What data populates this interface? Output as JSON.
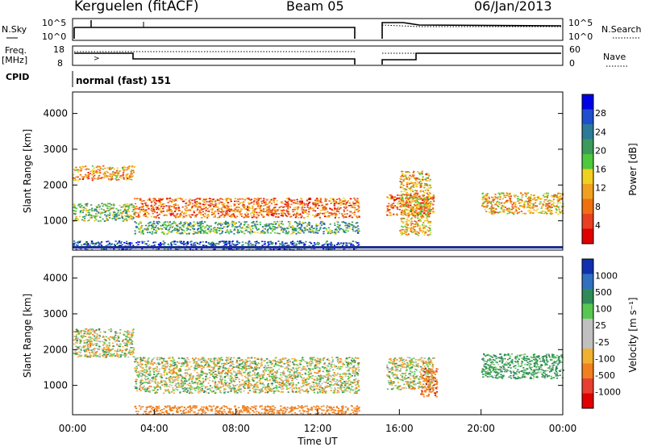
{
  "header": {
    "station": "Kerguelen (fitACF)",
    "beam": "Beam 05",
    "date": "06/Jan/2013"
  },
  "panels": {
    "nsky": {
      "left_label": "N.Sky",
      "right_label": "N.Search",
      "left_ticks": [
        "10^5",
        "10^0"
      ],
      "right_ticks": [
        "10^5",
        "10^0"
      ]
    },
    "freq": {
      "left_label_1": "Freq.",
      "left_label_2": "[MHz]",
      "right_label": "Nave",
      "left_ticks": [
        "18",
        "8"
      ],
      "right_ticks": [
        "60",
        "0"
      ]
    },
    "cpid": {
      "label": "CPID",
      "mode": "normal (fast) 151"
    }
  },
  "chart_data": [
    {
      "type": "heatmap",
      "title": "",
      "ylabel": "Slant Range [km]",
      "xlabel": "",
      "ylim": [
        180,
        4600
      ],
      "y_ticks": [
        "4000",
        "3000",
        "2000",
        "1000"
      ],
      "colorbar": {
        "label": "Power [dB]",
        "ticks": [
          "28",
          "24",
          "20",
          "16",
          "12",
          "8",
          "4"
        ],
        "colors": [
          "#0000e6",
          "#1f4fcf",
          "#2c7a9a",
          "#3c9a5a",
          "#4ec83c",
          "#f0d020",
          "#f0a020",
          "#f07010",
          "#e84020",
          "#e00000"
        ]
      },
      "data_gap": [
        "13:55",
        "15:20"
      ],
      "scatter_bands": [
        {
          "time": [
            "00:00",
            "03:00"
          ],
          "range_km": [
            2150,
            2550
          ],
          "power_db": 22
        },
        {
          "time": [
            "00:00",
            "03:00"
          ],
          "range_km": [
            1000,
            1500
          ],
          "power_db": 14
        },
        {
          "time": [
            "03:00",
            "14:00"
          ],
          "range_km": [
            1100,
            1650
          ],
          "power_db": 24
        },
        {
          "time": [
            "03:00",
            "14:00"
          ],
          "range_km": [
            650,
            1000
          ],
          "power_db": 12
        },
        {
          "time": [
            "15:20",
            "17:40"
          ],
          "range_km": [
            1150,
            1750
          ],
          "power_db": 24
        },
        {
          "time": [
            "16:00",
            "17:30"
          ],
          "range_km": [
            600,
            2400
          ],
          "power_db": 20
        },
        {
          "time": [
            "20:00",
            "24:00"
          ],
          "range_km": [
            1200,
            1800
          ],
          "power_db": 20
        },
        {
          "time": [
            "00:00",
            "14:00"
          ],
          "range_km": [
            200,
            450
          ],
          "power_db": 6
        }
      ]
    },
    {
      "type": "heatmap",
      "title": "",
      "ylabel": "Slant Range [km]",
      "xlabel": "Time UT",
      "ylim": [
        180,
        4600
      ],
      "y_ticks": [
        "4000",
        "3000",
        "2000",
        "1000"
      ],
      "x_ticks": [
        "00:00",
        "04:00",
        "08:00",
        "12:00",
        "16:00",
        "20:00",
        "00:00"
      ],
      "colorbar": {
        "label": "Velocity [m s⁻¹]",
        "ticks": [
          "1000",
          "500",
          "100",
          "25",
          "-25",
          "-100",
          "-500",
          "-1000"
        ],
        "colors": [
          "#1030b0",
          "#3070c0",
          "#2e8b57",
          "#56c850",
          "#c0c0c0",
          "#c0c0c0",
          "#f0b030",
          "#f08020",
          "#e84030",
          "#e00000"
        ]
      },
      "data_gap": [
        "13:55",
        "15:20"
      ],
      "scatter_bands": [
        {
          "time": [
            "00:00",
            "03:00"
          ],
          "range_km": [
            1800,
            2600
          ],
          "velocity": 0
        },
        {
          "time": [
            "03:00",
            "14:00"
          ],
          "range_km": [
            800,
            1800
          ],
          "velocity": 0
        },
        {
          "time": [
            "03:00",
            "14:00"
          ],
          "range_km": [
            200,
            450
          ],
          "velocity": -250
        },
        {
          "time": [
            "15:20",
            "17:40"
          ],
          "range_km": [
            900,
            1800
          ],
          "velocity": 0
        },
        {
          "time": [
            "17:00",
            "17:50"
          ],
          "range_km": [
            700,
            1500
          ],
          "velocity": -400
        },
        {
          "time": [
            "20:00",
            "24:00"
          ],
          "range_km": [
            1200,
            1900
          ],
          "velocity": 150
        }
      ]
    }
  ]
}
